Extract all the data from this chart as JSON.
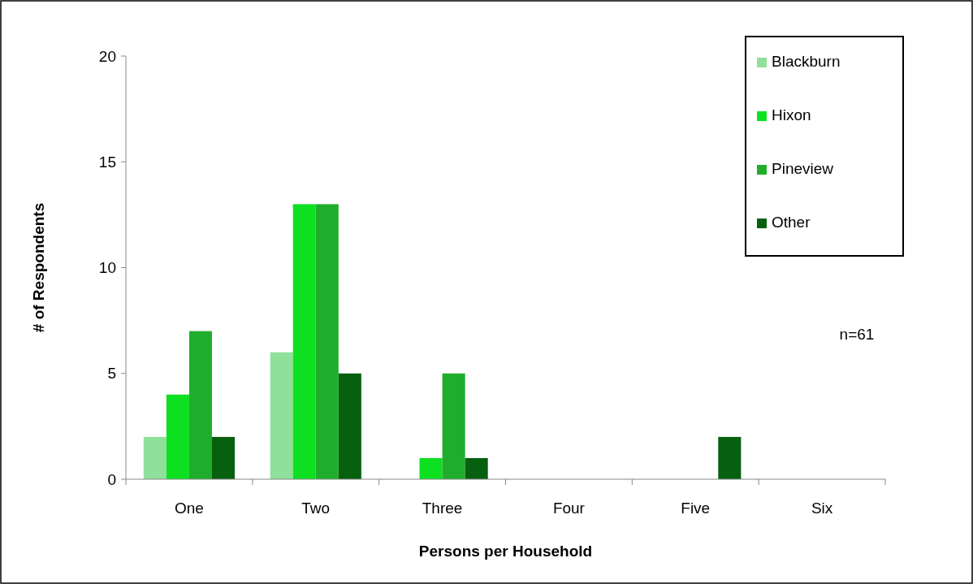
{
  "chart_data": {
    "type": "bar",
    "xlabel": "Persons per Household",
    "ylabel": "# of Respondents",
    "categories": [
      "One",
      "Two",
      "Three",
      "Four",
      "Five",
      "Six"
    ],
    "series": [
      {
        "name": "Blackburn",
        "color": "#8fe09a",
        "values": [
          2,
          6,
          0,
          0,
          0,
          0
        ]
      },
      {
        "name": "Hixon",
        "color": "#0de020",
        "values": [
          4,
          13,
          1,
          0,
          0,
          0
        ]
      },
      {
        "name": "Pineview",
        "color": "#1fae2c",
        "values": [
          7,
          13,
          5,
          0,
          0,
          0
        ]
      },
      {
        "name": "Other",
        "color": "#07600f",
        "values": [
          2,
          5,
          1,
          0,
          2,
          0
        ]
      }
    ],
    "ylim": [
      0,
      20
    ],
    "yticks": [
      0,
      5,
      10,
      15,
      20
    ],
    "grid": false,
    "legend": "top right",
    "annotations": [
      "n=61"
    ]
  }
}
